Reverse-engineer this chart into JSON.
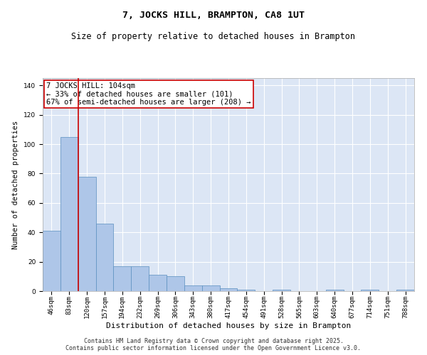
{
  "title": "7, JOCKS HILL, BRAMPTON, CA8 1UT",
  "subtitle": "Size of property relative to detached houses in Brampton",
  "xlabel": "Distribution of detached houses by size in Brampton",
  "ylabel": "Number of detached properties",
  "categories": [
    "46sqm",
    "83sqm",
    "120sqm",
    "157sqm",
    "194sqm",
    "232sqm",
    "269sqm",
    "306sqm",
    "343sqm",
    "380sqm",
    "417sqm",
    "454sqm",
    "491sqm",
    "528sqm",
    "565sqm",
    "603sqm",
    "640sqm",
    "677sqm",
    "714sqm",
    "751sqm",
    "788sqm"
  ],
  "values": [
    41,
    105,
    78,
    46,
    17,
    17,
    11,
    10,
    4,
    4,
    2,
    1,
    0,
    1,
    0,
    0,
    1,
    0,
    1,
    0,
    1
  ],
  "bar_color": "#aec6e8",
  "bar_edge_color": "#5a8fc0",
  "vline_x_index": 1.5,
  "vline_color": "#cc0000",
  "annotation_box_text": "7 JOCKS HILL: 104sqm\n← 33% of detached houses are smaller (101)\n67% of semi-detached houses are larger (208) →",
  "box_edge_color": "#cc0000",
  "ylim": [
    0,
    145
  ],
  "yticks": [
    0,
    20,
    40,
    60,
    80,
    100,
    120,
    140
  ],
  "bg_color": "#dce6f5",
  "footer_line1": "Contains HM Land Registry data © Crown copyright and database right 2025.",
  "footer_line2": "Contains public sector information licensed under the Open Government Licence v3.0.",
  "title_fontsize": 9.5,
  "subtitle_fontsize": 8.5,
  "tick_fontsize": 6.5,
  "label_fontsize": 8,
  "annotation_fontsize": 7.5,
  "footer_fontsize": 6,
  "ylabel_fontsize": 7.5
}
